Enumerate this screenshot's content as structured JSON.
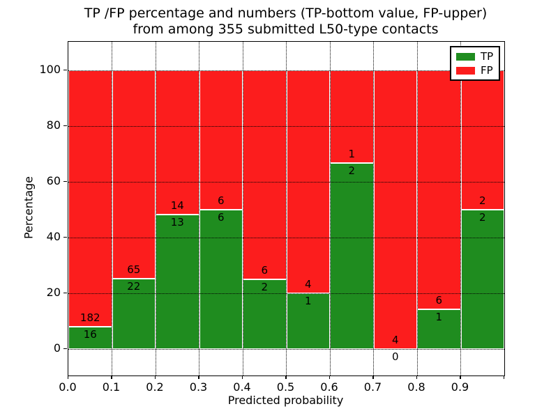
{
  "figure": {
    "title_line1": "TP /FP percentage and numbers (TP-bottom value, FP-upper)",
    "title_line2": "from among 355 submitted L50-type contacts"
  },
  "chart_data": {
    "type": "bar",
    "stacked": true,
    "title": "TP /FP percentage and numbers (TP-bottom value, FP-upper) from among 355 submitted L50-type contacts",
    "total_submitted_contacts": 355,
    "xlabel": "Predicted probability",
    "ylabel": "Percentage",
    "bin_starts": [
      0.0,
      0.1,
      0.2,
      0.3,
      0.4,
      0.5,
      0.6,
      0.7,
      0.8,
      0.9
    ],
    "bin_width": 0.1,
    "series": [
      {
        "name": "TP",
        "color": "#1f8c1f",
        "counts": [
          16,
          22,
          13,
          6,
          2,
          1,
          2,
          0,
          1,
          2
        ]
      },
      {
        "name": "FP",
        "color": "#fc1d1d",
        "counts": [
          182,
          65,
          14,
          6,
          6,
          4,
          1,
          4,
          6,
          2
        ]
      }
    ],
    "tp_percent": [
      8.08,
      25.29,
      48.15,
      50.0,
      25.0,
      20.0,
      66.67,
      0.0,
      14.29,
      50.0
    ],
    "bar_total_percent": 100,
    "xtick_labels": [
      "0.0",
      "0.1",
      "0.2",
      "0.3",
      "0.4",
      "0.5",
      "0.6",
      "0.7",
      "0.8",
      "0.9"
    ],
    "ytick_values": [
      0,
      20,
      40,
      60,
      80,
      100
    ],
    "xlim": [
      0.0,
      1.0
    ],
    "ylim": [
      -9.5,
      110.25
    ],
    "grid": "dotted",
    "legend": {
      "position": "upper right",
      "entries": [
        {
          "label": "TP",
          "color": "#1f8c1f"
        },
        {
          "label": "FP",
          "color": "#fc1d1d"
        }
      ]
    }
  }
}
